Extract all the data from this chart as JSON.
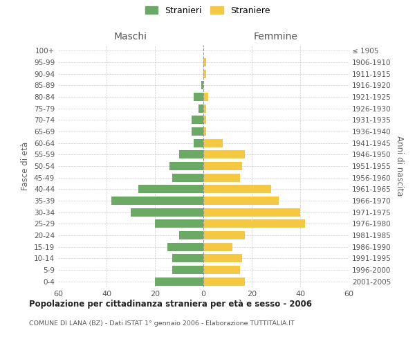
{
  "age_groups": [
    "0-4",
    "5-9",
    "10-14",
    "15-19",
    "20-24",
    "25-29",
    "30-34",
    "35-39",
    "40-44",
    "45-49",
    "50-54",
    "55-59",
    "60-64",
    "65-69",
    "70-74",
    "75-79",
    "80-84",
    "85-89",
    "90-94",
    "95-99",
    "100+"
  ],
  "birth_years": [
    "2001-2005",
    "1996-2000",
    "1991-1995",
    "1986-1990",
    "1981-1985",
    "1976-1980",
    "1971-1975",
    "1966-1970",
    "1961-1965",
    "1956-1960",
    "1951-1955",
    "1946-1950",
    "1941-1945",
    "1936-1940",
    "1931-1935",
    "1926-1930",
    "1921-1925",
    "1916-1920",
    "1911-1915",
    "1906-1910",
    "≤ 1905"
  ],
  "maschi": [
    20,
    13,
    13,
    15,
    10,
    20,
    30,
    38,
    27,
    13,
    14,
    10,
    4,
    5,
    5,
    2,
    4,
    1,
    0,
    0,
    0
  ],
  "femmine": [
    17,
    15,
    16,
    12,
    17,
    42,
    40,
    31,
    28,
    15,
    16,
    17,
    8,
    1,
    1,
    1,
    2,
    0,
    1,
    1,
    0
  ],
  "color_maschi": "#6aaa64",
  "color_femmine": "#f5c842",
  "title_main": "Popolazione per cittadinanza straniera per età e sesso - 2006",
  "title_sub": "COMUNE DI LANA (BZ) - Dati ISTAT 1° gennaio 2006 - Elaborazione TUTTITALIA.IT",
  "xlabel_left": "Maschi",
  "xlabel_right": "Femmine",
  "ylabel_left": "Fasce di età",
  "ylabel_right": "Anni di nascita",
  "legend_maschi": "Stranieri",
  "legend_femmine": "Straniere",
  "xlim": 60,
  "background_color": "#ffffff",
  "grid_color": "#cccccc"
}
